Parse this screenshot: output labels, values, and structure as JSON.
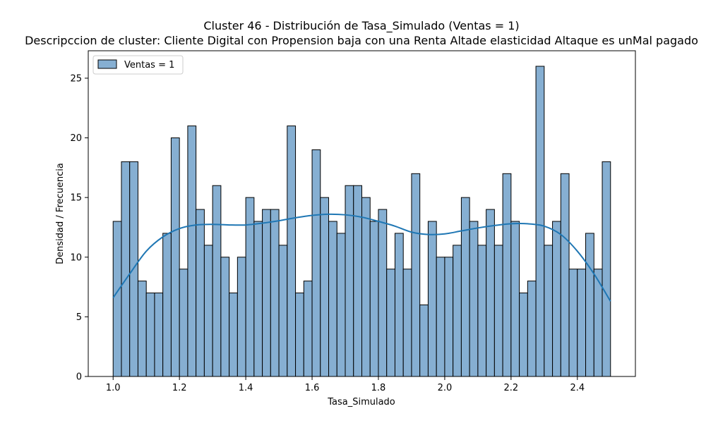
{
  "chart_data": {
    "type": "bar",
    "title": "Cluster 46 - Distribución de Tasa_Simulado (Ventas = 1)",
    "subtitle": "Descripccion de cluster: Cliente Digital con Propension baja con una Renta Altade elasticidad Altaque es unMal pagado",
    "xlabel": "Tasa_Simulado",
    "ylabel": "Densidad / Frecuencia",
    "xlim": [
      0.925,
      2.575
    ],
    "ylim": [
      0,
      27.3
    ],
    "x_ticks": [
      "1.0",
      "1.2",
      "1.4",
      "1.6",
      "1.8",
      "2.0",
      "2.2",
      "2.4"
    ],
    "y_ticks": [
      "0",
      "5",
      "10",
      "15",
      "20",
      "25"
    ],
    "bins": {
      "start": 1.0,
      "end": 2.5,
      "count": 60
    },
    "series": [
      {
        "name": "Ventas = 1",
        "values": [
          13,
          18,
          18,
          8,
          7,
          7,
          12,
          20,
          9,
          21,
          14,
          11,
          16,
          10,
          7,
          10,
          15,
          13,
          14,
          14,
          11,
          21,
          7,
          8,
          19,
          15,
          13,
          12,
          16,
          16,
          15,
          13,
          14,
          9,
          12,
          9,
          17,
          6,
          13,
          10,
          10,
          11,
          15,
          13,
          11,
          14,
          11,
          17,
          13,
          7,
          8,
          26,
          11,
          13,
          17,
          9,
          9,
          12,
          9,
          18
        ]
      }
    ],
    "kde": {
      "x": [
        1.0,
        1.05,
        1.1,
        1.15,
        1.2,
        1.25,
        1.3,
        1.35,
        1.4,
        1.45,
        1.5,
        1.55,
        1.6,
        1.65,
        1.7,
        1.75,
        1.8,
        1.85,
        1.9,
        1.95,
        2.0,
        2.05,
        2.1,
        2.15,
        2.2,
        2.25,
        2.3,
        2.35,
        2.4,
        2.45,
        2.5
      ],
      "y": [
        6.6,
        8.6,
        10.5,
        11.7,
        12.4,
        12.7,
        12.75,
        12.7,
        12.7,
        12.85,
        13.05,
        13.3,
        13.5,
        13.6,
        13.55,
        13.35,
        13.0,
        12.6,
        12.1,
        11.9,
        11.95,
        12.2,
        12.45,
        12.65,
        12.8,
        12.8,
        12.6,
        11.9,
        10.5,
        8.6,
        6.3
      ]
    },
    "legend_position": "top-left",
    "grid": false,
    "colors": {
      "bar_fill": "#86afd2",
      "bar_edge": "#000000",
      "kde_line": "#1f77b4"
    }
  }
}
